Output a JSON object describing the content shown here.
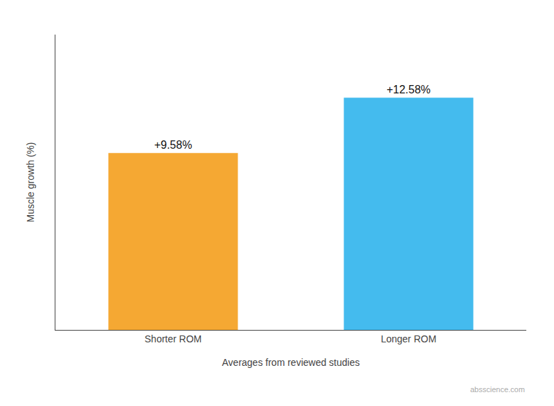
{
  "chart_data": {
    "type": "bar",
    "categories": [
      "Shorter ROM",
      "Longer ROM"
    ],
    "values": [
      9.58,
      12.58
    ],
    "value_labels": [
      "+9.58%",
      "+12.58%"
    ],
    "data_labels": true,
    "colors": [
      "#F5A833",
      "#44BBEE"
    ],
    "xlabel": "Averages from reviewed studies",
    "ylabel": "Muscle growth (%)",
    "ylim": [
      0,
      16
    ],
    "yticks": [],
    "tick_labels": "x",
    "grid": false,
    "annotations": [
      "absscience.com"
    ]
  }
}
